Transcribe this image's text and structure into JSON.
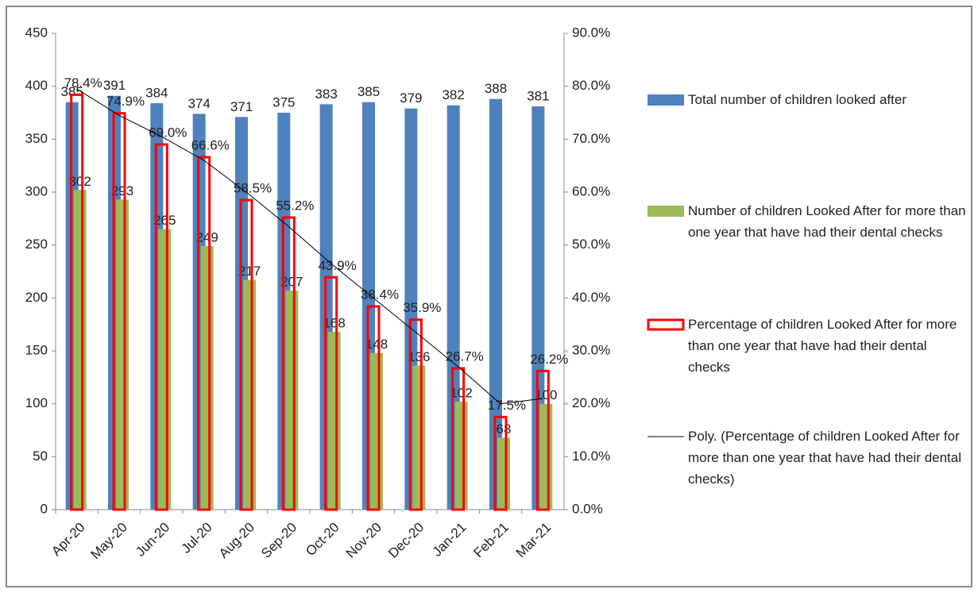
{
  "chart_data": {
    "type": "combo",
    "categories": [
      "Apr-20",
      "May-20",
      "Jun-20",
      "Jul-20",
      "Aug-20",
      "Sep-20",
      "Oct-20",
      "Nov-20",
      "Dec-20",
      "Jan-21",
      "Feb-21",
      "Mar-21"
    ],
    "ylim": [
      0,
      450
    ],
    "yticks": [
      0,
      50,
      100,
      150,
      200,
      250,
      300,
      350,
      400,
      450
    ],
    "y2lim": [
      0,
      90
    ],
    "y2ticks": [
      {
        "value": 0,
        "label": "0.0%"
      },
      {
        "value": 10,
        "label": "10.0%"
      },
      {
        "value": 20,
        "label": "20.0%"
      },
      {
        "value": 30,
        "label": "30.0%"
      },
      {
        "value": 40,
        "label": "40.0%"
      },
      {
        "value": 50,
        "label": "50.0%"
      },
      {
        "value": 60,
        "label": "60.0%"
      },
      {
        "value": 70,
        "label": "70.0%"
      },
      {
        "value": 80,
        "label": "80.0%"
      },
      {
        "value": 90,
        "label": "90.0%"
      }
    ],
    "grid": false,
    "series": [
      {
        "name": "Total number of children looked after",
        "kind": "bar",
        "color": "#4f81bd",
        "values": [
          385,
          391,
          384,
          374,
          371,
          375,
          383,
          385,
          379,
          382,
          388,
          381
        ]
      },
      {
        "name": "Number of children Looked After for more than one year that have had their dental checks",
        "kind": "bar",
        "color": "#9bbb59",
        "values": [
          302,
          293,
          265,
          249,
          217,
          207,
          168,
          148,
          136,
          102,
          68,
          100
        ]
      },
      {
        "name": "Percentage of children Looked After for more than one year that have had their dental checks",
        "kind": "outline-bar",
        "axis": "y2",
        "color": "#ff0000",
        "values": [
          78.4,
          74.9,
          69.0,
          66.6,
          58.5,
          55.2,
          43.9,
          38.4,
          35.9,
          26.7,
          17.5,
          26.2
        ],
        "value_labels": [
          "78.4%",
          "74.9%",
          "69.0%",
          "66.6%",
          "58.5%",
          "55.2%",
          "43.9%",
          "38.4%",
          "35.9%",
          "26.7%",
          "17.5%",
          "26.2%"
        ]
      },
      {
        "name": "Poly. (Percentage of children Looked After for more than one year that have had their dental checks)",
        "kind": "line",
        "axis": "y2",
        "color": "#000000",
        "values": [
          79.5,
          74.5,
          70.5,
          66,
          60,
          53.5,
          46.5,
          40,
          33.5,
          27,
          20,
          21
        ]
      }
    ],
    "legend": "right"
  }
}
